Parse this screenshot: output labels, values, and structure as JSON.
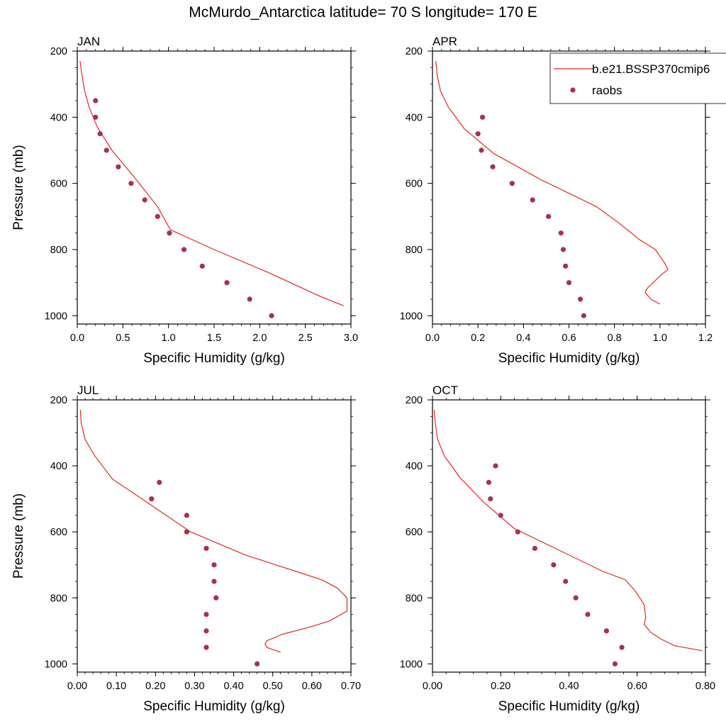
{
  "title": "McMurdo_Antarctica  latitude= 70 S longitude= 170 E",
  "legend": {
    "model_label": "b.e21.BSSP370cmip6",
    "obs_label": "raobs",
    "model_color": "#e8271f",
    "obs_color": "#a8304f"
  },
  "chart_data": [
    {
      "type": "line",
      "panel": "JAN",
      "xlabel": "Specific Humidity (g/kg)",
      "ylabel": "Pressure (mb)",
      "xlim": [
        0,
        3.0
      ],
      "ylim": [
        200,
        1025
      ],
      "y_reversed": true,
      "xticks": [
        "0.0",
        "0.5",
        "1.0",
        "1.5",
        "2.0",
        "2.5",
        "3.0"
      ],
      "xtick_values": [
        0,
        0.5,
        1.0,
        1.5,
        2.0,
        2.5,
        3.0
      ],
      "yticks": [
        200,
        400,
        600,
        800,
        1000
      ],
      "series": [
        {
          "name": "b.e21.BSSP370cmip6",
          "kind": "line",
          "x": [
            0.03,
            0.05,
            0.08,
            0.13,
            0.22,
            0.38,
            0.62,
            0.88,
            1.02,
            1.5,
            2.1,
            2.65,
            2.92
          ],
          "y": [
            230,
            270,
            320,
            370,
            430,
            500,
            580,
            670,
            740,
            800,
            870,
            940,
            970
          ]
        },
        {
          "name": "raobs",
          "kind": "points",
          "x": [
            0.2,
            0.2,
            0.25,
            0.32,
            0.45,
            0.59,
            0.74,
            0.88,
            1.01,
            1.17,
            1.37,
            1.64,
            1.89,
            2.13
          ],
          "y": [
            350,
            400,
            450,
            500,
            550,
            600,
            650,
            700,
            750,
            800,
            850,
            900,
            950,
            1000
          ]
        }
      ]
    },
    {
      "type": "line",
      "panel": "APR",
      "xlabel": "Specific Humidity (g/kg)",
      "ylabel": "",
      "xlim": [
        0,
        1.2
      ],
      "ylim": [
        200,
        1025
      ],
      "y_reversed": true,
      "xticks": [
        "0.0",
        "0.2",
        "0.4",
        "0.6",
        "0.8",
        "1.0",
        "1.2"
      ],
      "xtick_values": [
        0,
        0.2,
        0.4,
        0.6,
        0.8,
        1.0,
        1.2
      ],
      "yticks": [
        200,
        400,
        600,
        800,
        1000
      ],
      "series": [
        {
          "name": "b.e21.BSSP370cmip6",
          "kind": "line",
          "x": [
            0.015,
            0.02,
            0.035,
            0.07,
            0.14,
            0.27,
            0.48,
            0.72,
            0.82,
            0.91,
            0.98,
            1.02,
            1.035,
            1.0,
            0.94,
            0.935,
            0.96,
            1.0
          ],
          "y": [
            230,
            270,
            320,
            370,
            435,
            510,
            590,
            670,
            720,
            770,
            800,
            840,
            860,
            880,
            920,
            930,
            950,
            965
          ]
        },
        {
          "name": "raobs",
          "kind": "points",
          "x": [
            0.22,
            0.2,
            0.215,
            0.265,
            0.35,
            0.44,
            0.51,
            0.565,
            0.575,
            0.585,
            0.6,
            0.65,
            0.665
          ],
          "y": [
            400,
            450,
            500,
            550,
            600,
            650,
            700,
            750,
            800,
            850,
            900,
            950,
            1000
          ]
        }
      ]
    },
    {
      "type": "line",
      "panel": "JUL",
      "xlabel": "Specific Humidity (g/kg)",
      "ylabel": "Pressure (mb)",
      "xlim": [
        0,
        0.7
      ],
      "ylim": [
        200,
        1025
      ],
      "y_reversed": true,
      "xticks": [
        "0.00",
        "0.10",
        "0.20",
        "0.30",
        "0.40",
        "0.50",
        "0.60",
        "0.70"
      ],
      "xtick_values": [
        0,
        0.1,
        0.2,
        0.3,
        0.4,
        0.5,
        0.6,
        0.7
      ],
      "yticks": [
        200,
        400,
        600,
        800,
        1000
      ],
      "series": [
        {
          "name": "b.e21.BSSP370cmip6",
          "kind": "line",
          "x": [
            0.008,
            0.01,
            0.02,
            0.045,
            0.09,
            0.19,
            0.29,
            0.43,
            0.56,
            0.625,
            0.665,
            0.69,
            0.69,
            0.645,
            0.59,
            0.525,
            0.485,
            0.48,
            0.485,
            0.52
          ],
          "y": [
            230,
            270,
            320,
            370,
            440,
            520,
            600,
            670,
            720,
            745,
            770,
            800,
            840,
            870,
            890,
            910,
            930,
            940,
            950,
            965
          ]
        },
        {
          "name": "raobs",
          "kind": "points",
          "x": [
            0.21,
            0.19,
            0.28,
            0.28,
            0.33,
            0.35,
            0.35,
            0.355,
            0.33,
            0.33,
            0.33,
            0.46
          ],
          "y": [
            450,
            500,
            550,
            600,
            650,
            700,
            750,
            800,
            850,
            900,
            950,
            1000
          ]
        }
      ]
    },
    {
      "type": "line",
      "panel": "OCT",
      "xlabel": "Specific Humidity (g/kg)",
      "ylabel": "",
      "xlim": [
        0,
        0.8
      ],
      "ylim": [
        200,
        1025
      ],
      "y_reversed": true,
      "xticks": [
        "0.00",
        "0.20",
        "0.40",
        "0.60",
        "0.80"
      ],
      "xtick_values": [
        0,
        0.2,
        0.4,
        0.6,
        0.8
      ],
      "yticks": [
        200,
        400,
        600,
        800,
        1000
      ],
      "series": [
        {
          "name": "b.e21.BSSP370cmip6",
          "kind": "line",
          "x": [
            0.005,
            0.008,
            0.015,
            0.035,
            0.08,
            0.15,
            0.24,
            0.36,
            0.5,
            0.565,
            0.595,
            0.62,
            0.625,
            0.62,
            0.64,
            0.67,
            0.71,
            0.79
          ],
          "y": [
            230,
            270,
            320,
            370,
            435,
            510,
            590,
            650,
            720,
            745,
            780,
            820,
            860,
            880,
            905,
            925,
            945,
            960
          ]
        },
        {
          "name": "raobs",
          "kind": "points",
          "x": [
            0.185,
            0.165,
            0.17,
            0.2,
            0.25,
            0.3,
            0.355,
            0.39,
            0.42,
            0.455,
            0.51,
            0.555,
            0.535
          ],
          "y": [
            400,
            450,
            500,
            550,
            600,
            650,
            700,
            750,
            800,
            850,
            900,
            950,
            1000
          ]
        }
      ]
    }
  ]
}
